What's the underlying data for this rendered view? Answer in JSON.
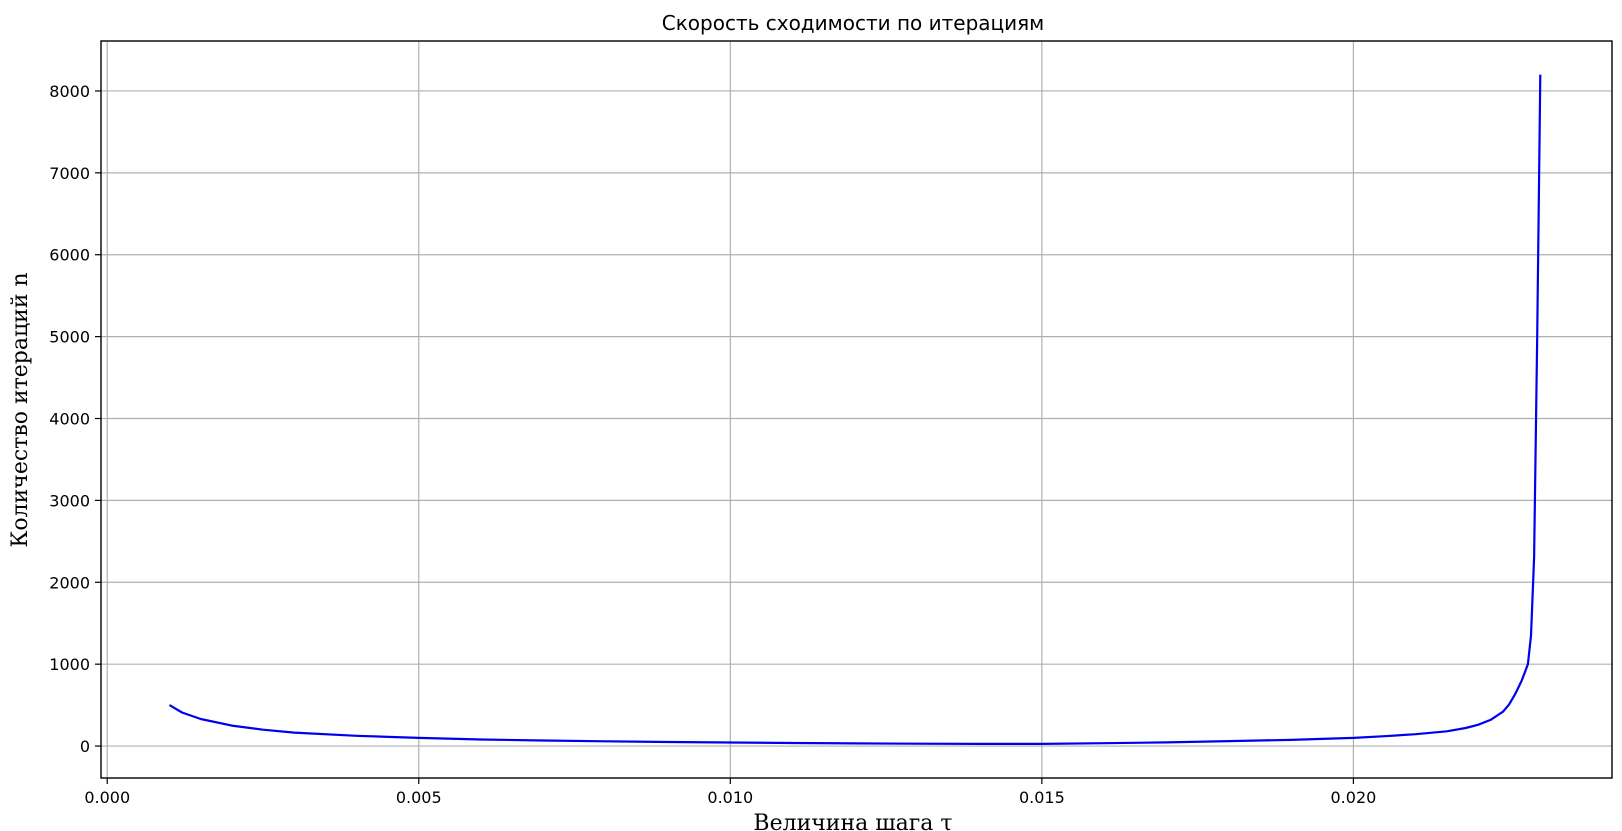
{
  "chart_data": {
    "type": "line",
    "title": "Скорость сходимости по итерациям",
    "xlabel": "Величина шага τ",
    "ylabel": "Количество итераций n",
    "xlim": [
      -0.0001,
      0.02415
    ],
    "ylim": [
      -390,
      8610
    ],
    "xticks": [
      0.0,
      0.005,
      0.01,
      0.015,
      0.02
    ],
    "xtick_labels": [
      "0.000",
      "0.005",
      "0.010",
      "0.015",
      "0.020"
    ],
    "yticks": [
      0,
      1000,
      2000,
      3000,
      4000,
      5000,
      6000,
      7000,
      8000
    ],
    "ytick_labels": [
      "0",
      "1000",
      "2000",
      "3000",
      "4000",
      "5000",
      "6000",
      "7000",
      "8000"
    ],
    "grid": true,
    "color": "#0000ee",
    "series": [
      {
        "x": [
          0.001,
          0.0012,
          0.0015,
          0.002,
          0.0025,
          0.003,
          0.004,
          0.005,
          0.006,
          0.007,
          0.008,
          0.009,
          0.01,
          0.011,
          0.012,
          0.013,
          0.014,
          0.015,
          0.016,
          0.017,
          0.018,
          0.019,
          0.02,
          0.0205,
          0.021,
          0.0215,
          0.0218,
          0.022,
          0.0222,
          0.0224,
          0.0225,
          0.0226,
          0.0227,
          0.0228,
          0.02285,
          0.0229,
          0.02295,
          0.023
        ],
        "y": [
          500,
          410,
          330,
          250,
          200,
          165,
          125,
          100,
          80,
          68,
          58,
          50,
          44,
          38,
          33,
          29,
          27,
          26,
          35,
          45,
          60,
          75,
          100,
          120,
          145,
          180,
          220,
          260,
          320,
          420,
          510,
          640,
          800,
          1000,
          1350,
          2300,
          5000,
          8200
        ]
      }
    ]
  }
}
